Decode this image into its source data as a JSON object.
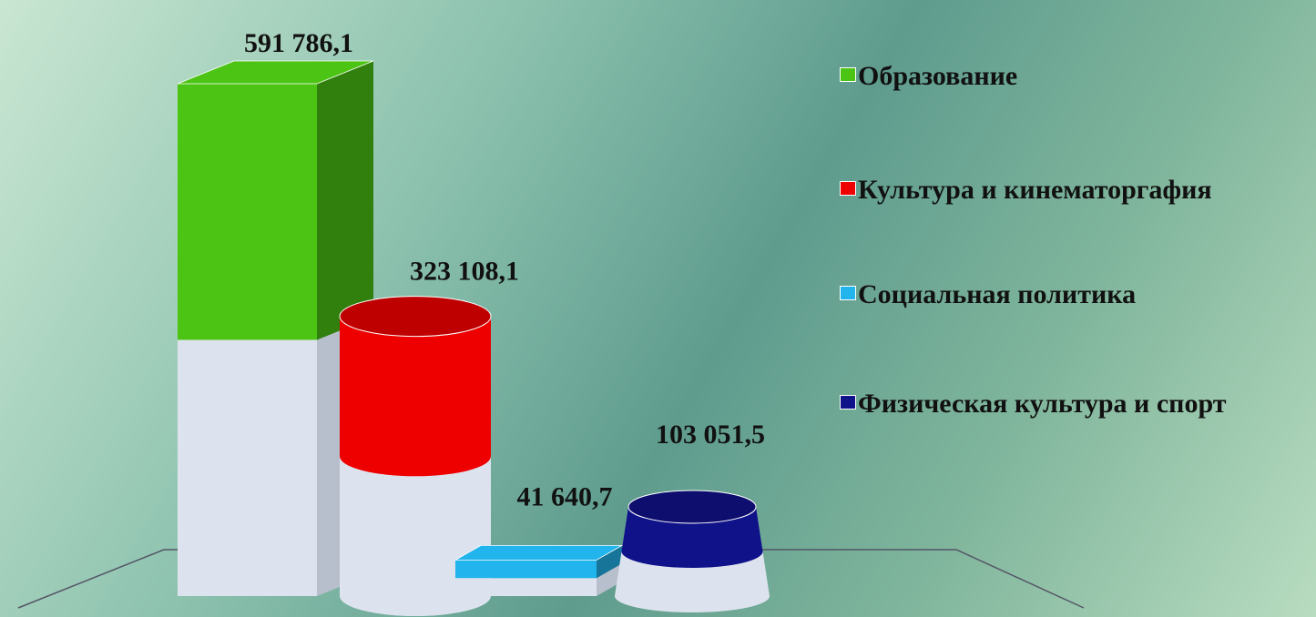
{
  "chart_data": {
    "type": "bar",
    "series": [
      {
        "name": "Образование",
        "color": "#4cc414",
        "values": [
          591786.1
        ],
        "value_labels": [
          "591 786,1"
        ]
      },
      {
        "name": "Культура и кинематоргафия",
        "color": "#ee0000",
        "values": [
          323108.1
        ],
        "value_labels": [
          "323 108,1"
        ]
      },
      {
        "name": "Социальная политика",
        "color": "#22b4ec",
        "values": [
          41640.7
        ],
        "value_labels": [
          "41 640,7"
        ]
      },
      {
        "name": "Физическая культура и спорт",
        "color": "#10128a",
        "values": [
          103051.5
        ],
        "value_labels": [
          "103 051,5"
        ]
      }
    ]
  }
}
